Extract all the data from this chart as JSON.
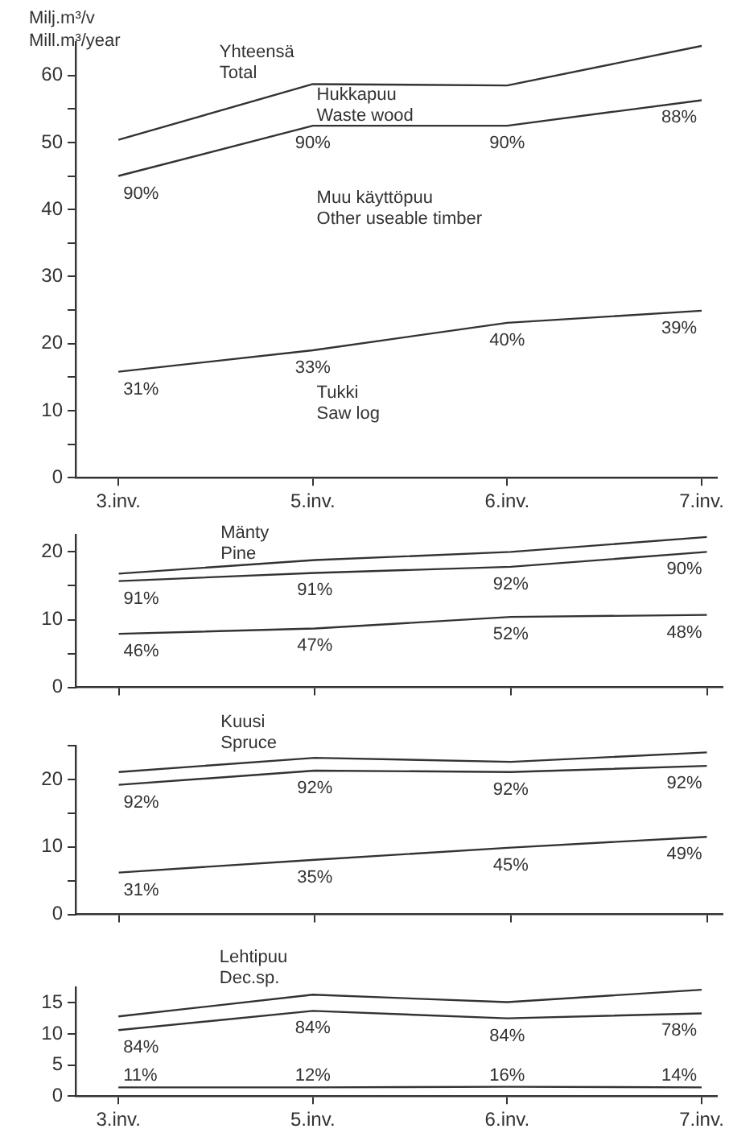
{
  "chart_data": [
    {
      "type": "line",
      "ylabel": "Milj.m³/v\nMill.m³/year",
      "categories": [
        "3.inv.",
        "5.inv.",
        "6.inv.",
        "7.inv."
      ],
      "series": [
        {
          "color": "#333333",
          "values": [
            50.4,
            58.7,
            58.5,
            64.4
          ]
        },
        {
          "color": "#333333",
          "values": [
            45,
            52.5,
            52.5,
            56.3
          ]
        },
        {
          "color": "#333333",
          "values": [
            15.8,
            19,
            23.1,
            24.9
          ]
        }
      ],
      "ylim": [
        0,
        65
      ],
      "yticks": [
        0,
        {
          "value": 5,
          "label": null
        },
        10,
        {
          "value": 15,
          "label": null
        },
        20,
        {
          "value": 25,
          "label": null
        },
        30,
        {
          "value": 35,
          "label": null
        },
        40,
        {
          "value": 45,
          "label": null
        },
        50,
        {
          "value": 55,
          "label": null
        },
        60
      ],
      "annotations": [
        "Yhteensä\nTotal",
        "Hukkapuu\nWaste wood",
        "Muu käyttöpuu\nOther useable timber",
        "Tukki\nSaw log",
        {
          "text": "90%",
          "x": "3.inv.",
          "y": 45
        },
        {
          "text": "90%",
          "x": "5.inv.",
          "y": 52.5
        },
        {
          "text": "90%",
          "x": "6.inv.",
          "y": 52.5
        },
        {
          "text": "88%",
          "x": "7.inv.",
          "y": 56.3
        },
        {
          "text": "31%",
          "x": "3.inv.",
          "y": 15.8
        },
        {
          "text": "33%",
          "x": "5.inv.",
          "y": 19
        },
        {
          "text": "40%",
          "x": "6.inv.",
          "y": 23.1
        },
        {
          "text": "39%",
          "x": "7.inv.",
          "y": 24.9
        }
      ],
      "grid": false,
      "legend": false,
      "marker": "none",
      "line_style": "solid"
    },
    {
      "type": "line",
      "title": "Mänty\nPine",
      "categories": [
        "3.inv.",
        "5.inv.",
        "6.inv.",
        "7.inv."
      ],
      "series": [
        {
          "color": "#333333",
          "values": [
            16.8,
            18.8,
            20,
            22.2
          ]
        },
        {
          "color": "#333333",
          "values": [
            15.7,
            16.9,
            17.8,
            20
          ]
        },
        {
          "color": "#333333",
          "values": [
            7.9,
            8.7,
            10.4,
            10.7
          ]
        }
      ],
      "annotations": [
        {
          "text": "91%",
          "x": "3.inv.",
          "y": 15.7
        },
        {
          "text": "91%",
          "x": "5.inv.",
          "y": 16.9
        },
        {
          "text": "92%",
          "x": "6.inv.",
          "y": 17.8
        },
        {
          "text": "90%",
          "x": "7.inv.",
          "y": 20
        },
        {
          "text": "46%",
          "x": "3.inv.",
          "y": 7.9
        },
        {
          "text": "47%",
          "x": "5.inv.",
          "y": 8.7
        },
        {
          "text": "52%",
          "x": "6.inv.",
          "y": 10.4
        },
        {
          "text": "48%",
          "x": "7.inv.",
          "y": 10.7
        }
      ],
      "ylim": [
        0,
        22.5
      ],
      "yticks": [
        0,
        {
          "value": 5,
          "label": null
        },
        10,
        {
          "value": 15,
          "label": null
        },
        20
      ],
      "tick_labels": "y",
      "grid": false,
      "legend": false,
      "marker": "none",
      "line_style": "solid"
    },
    {
      "type": "line",
      "title": "Kuusi\nSpruce",
      "categories": [
        "3.inv.",
        "5.inv.",
        "6.inv.",
        "7.inv."
      ],
      "series": [
        {
          "color": "#333333",
          "values": [
            21.1,
            23.2,
            22.6,
            24
          ]
        },
        {
          "color": "#333333",
          "values": [
            19.2,
            21.3,
            21.1,
            22
          ]
        },
        {
          "color": "#333333",
          "values": [
            6.2,
            8.1,
            9.9,
            11.5
          ]
        }
      ],
      "annotations": [
        {
          "text": "92%",
          "x": "3.inv.",
          "y": 19.2
        },
        {
          "text": "92%",
          "x": "5.inv.",
          "y": 21.3
        },
        {
          "text": "92%",
          "x": "6.inv.",
          "y": 21.1
        },
        {
          "text": "92%",
          "x": "7.inv.",
          "y": 22
        },
        {
          "text": "31%",
          "x": "3.inv.",
          "y": 6.2
        },
        {
          "text": "35%",
          "x": "5.inv.",
          "y": 8.1
        },
        {
          "text": "45%",
          "x": "6.inv.",
          "y": 9.9
        },
        {
          "text": "49%",
          "x": "7.inv.",
          "y": 11.5
        }
      ],
      "ylim": [
        0,
        25
      ],
      "yticks": [
        0,
        {
          "value": 5,
          "label": null
        },
        10,
        {
          "value": 15,
          "label": null
        },
        20,
        {
          "value": 25,
          "label": null
        }
      ],
      "tick_labels": "y",
      "grid": false,
      "legend": false,
      "marker": "none",
      "line_style": "solid"
    },
    {
      "type": "line",
      "title": "Lehtipuu\nDec.sp.",
      "categories": [
        "3.inv.",
        "5.inv.",
        "6.inv.",
        "7.inv."
      ],
      "series": [
        {
          "color": "#333333",
          "values": [
            12.8,
            16.3,
            15.1,
            17.1
          ]
        },
        {
          "color": "#333333",
          "values": [
            10.6,
            13.7,
            12.5,
            13.3
          ]
        },
        {
          "color": "#333333",
          "values": [
            1.4,
            1.4,
            1.5,
            1.4
          ]
        }
      ],
      "annotations": [
        {
          "text": "84%",
          "x": "3.inv.",
          "y": 10.6
        },
        {
          "text": "84%",
          "x": "5.inv.",
          "y": 13.7
        },
        {
          "text": "84%",
          "x": "6.inv.",
          "y": 12.5
        },
        {
          "text": "78%",
          "x": "7.inv.",
          "y": 13.3
        },
        {
          "text": "11%",
          "x": "3.inv.",
          "y": 1.4
        },
        {
          "text": "12%",
          "x": "5.inv.",
          "y": 1.4
        },
        {
          "text": "16%",
          "x": "6.inv.",
          "y": 1.5
        },
        {
          "text": "14%",
          "x": "7.inv.",
          "y": 1.4
        }
      ],
      "ylim": [
        0,
        17.5
      ],
      "yticks": [
        0,
        5,
        10,
        15
      ],
      "grid": false,
      "legend": false,
      "marker": "none",
      "line_style": "solid"
    }
  ]
}
